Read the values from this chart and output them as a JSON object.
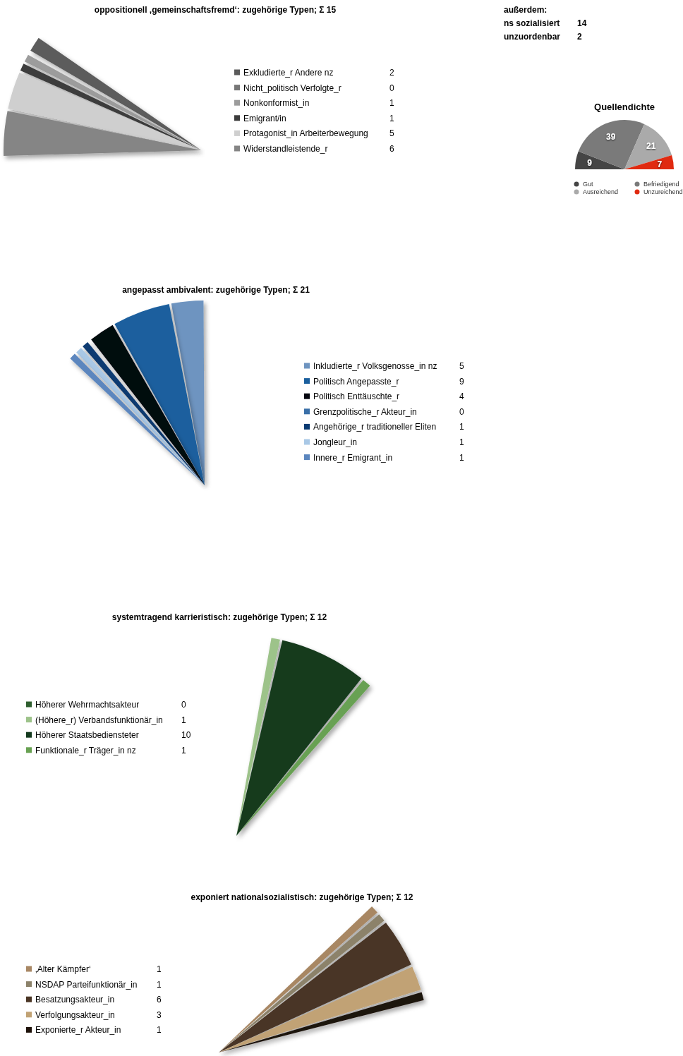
{
  "chart_data": [
    {
      "type": "pie",
      "title": "oppositionell ‚gemeinschaftsfremd‘: zugehörige Typen;  Σ 15",
      "categories": [
        "Exkludierte_r Andere nz",
        "Nicht_politisch Verfolgte_r",
        "Nonkonformist_in",
        "Emigrant/in",
        "Protagonist_in Arbeiterbewegung",
        "Widerstandleistende_r"
      ],
      "values": [
        2,
        0,
        1,
        1,
        5,
        6
      ],
      "colors": [
        "#5b5b5b",
        "#777777",
        "#9c9c9c",
        "#3c3c3c",
        "#cfcfcf",
        "#858585"
      ],
      "value_labels": [
        "2",
        "0",
        "1",
        "1",
        "5",
        "6"
      ],
      "legend": "right"
    },
    {
      "type": "other",
      "title": "außerdem:",
      "categories": [
        "ns sozialisiert",
        "unzuordenbar"
      ],
      "values": [
        14,
        2
      ],
      "data_labels": true
    },
    {
      "type": "pie",
      "title": "Quellendichte",
      "categories": [
        "Gut",
        "Befriedigend",
        "Ausreichend",
        "Unzureichend"
      ],
      "values": [
        9,
        39,
        21,
        7
      ],
      "colors": [
        "#454545",
        "#7a7a7a",
        "#aaaaaa",
        "#e02a10"
      ],
      "data_labels": true,
      "legend": "bottom"
    },
    {
      "type": "pie",
      "title": "angepasst ambivalent: zugehörige Typen;  Σ 21",
      "categories": [
        "Inkludierte_r Volksgenosse_in nz",
        "Politisch Angepasste_r",
        "Politisch Enttäuschte_r",
        "Grenzpolitische_r Akteur_in",
        "Angehörige_r traditioneller Eliten",
        "Jongleur_in",
        "Innere_r Emigrant_in"
      ],
      "values": [
        5,
        9,
        4,
        0,
        1,
        1,
        1
      ],
      "colors": [
        "#6e94c0",
        "#1a5f9e",
        "#05070f",
        "#3a6fa8",
        "#0a3a72",
        "#a9c8e6",
        "#5b86be"
      ],
      "value_labels": [
        "5",
        "9",
        "4",
        "0",
        "1",
        "1",
        "1"
      ],
      "legend": "right"
    },
    {
      "type": "pie",
      "title": "systemtragend karrieristisch: zugehörige Typen;  Σ 12",
      "categories": [
        "Höherer Wehrmachtsakteur",
        "(Höhere_r) Verbandsfunktionär_in",
        "Höherer Staatsbediensteter",
        "Funktionale_r Träger_in nz"
      ],
      "values": [
        0,
        1,
        10,
        1
      ],
      "colors": [
        "#2f5f2f",
        "#9dc38a",
        "#143a1e",
        "#68a152"
      ],
      "value_labels": [
        "0",
        "1",
        "10",
        "1"
      ],
      "legend": "left"
    },
    {
      "type": "pie",
      "title": "exponiert nationalsozialistisch: zugehörige Typen;  Σ 12",
      "categories": [
        "‚Alter Kämpfer‘",
        "NSDAP Parteifunktionär_in",
        "Besatzungsakteur_in",
        "Verfolgungsakteur_in",
        "Exponierte_r Akteur_in"
      ],
      "values": [
        1,
        1,
        6,
        3,
        1
      ],
      "colors": [
        "#a88764",
        "#8c826a",
        "#4a3525",
        "#c1a274",
        "#1e120a"
      ],
      "value_labels": [
        "1",
        "1",
        "6",
        "3",
        "1"
      ],
      "legend": "left"
    }
  ]
}
